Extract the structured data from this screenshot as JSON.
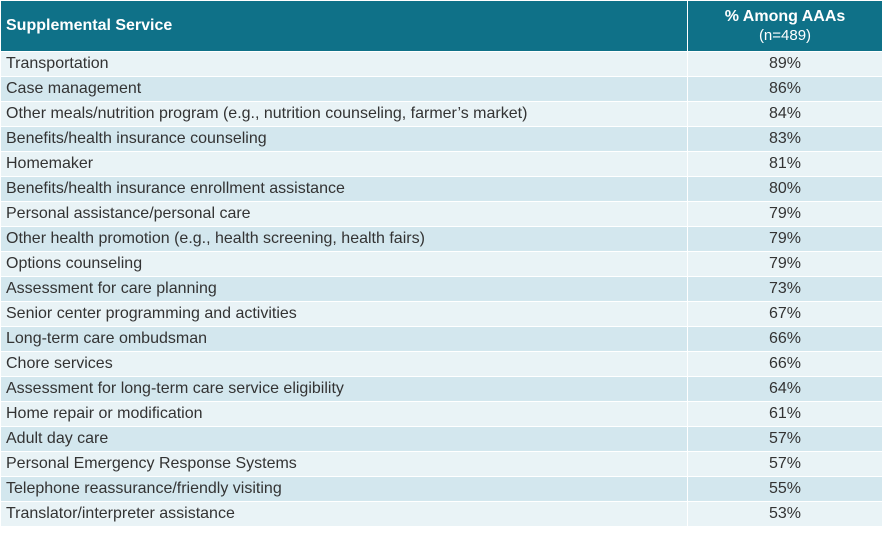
{
  "colors": {
    "header_bg": "#0f7188",
    "row_light": "#e9f3f6",
    "row_dark": "#d3e7ee"
  },
  "chart_data": {
    "type": "table",
    "columns": [
      "Supplemental Service",
      "% Among AAAs",
      "(n=489)"
    ],
    "rows": [
      {
        "service": "Transportation",
        "value": "89%"
      },
      {
        "service": "Case management",
        "value": "86%"
      },
      {
        "service": "Other meals/nutrition program (e.g., nutrition counseling, farmer’s market)",
        "value": "84%"
      },
      {
        "service": "Benefits/health insurance counseling",
        "value": "83%"
      },
      {
        "service": "Homemaker",
        "value": "81%"
      },
      {
        "service": "Benefits/health insurance enrollment assistance",
        "value": "80%"
      },
      {
        "service": "Personal assistance/personal care",
        "value": "79%"
      },
      {
        "service": "Other health promotion (e.g., health screening, health fairs)",
        "value": "79%"
      },
      {
        "service": "Options counseling",
        "value": "79%"
      },
      {
        "service": "Assessment for care planning",
        "value": "73%"
      },
      {
        "service": "Senior center programming and activities",
        "value": "67%"
      },
      {
        "service": "Long-term care ombudsman",
        "value": "66%"
      },
      {
        "service": "Chore services",
        "value": "66%"
      },
      {
        "service": "Assessment for long-term care service eligibility",
        "value": "64%"
      },
      {
        "service": "Home repair or modification",
        "value": "61%"
      },
      {
        "service": "Adult day care",
        "value": "57%"
      },
      {
        "service": "Personal Emergency Response Systems",
        "value": "57%"
      },
      {
        "service": "Telephone reassurance/friendly visiting",
        "value": "55%"
      },
      {
        "service": "Translator/interpreter assistance",
        "value": "53%"
      }
    ]
  }
}
